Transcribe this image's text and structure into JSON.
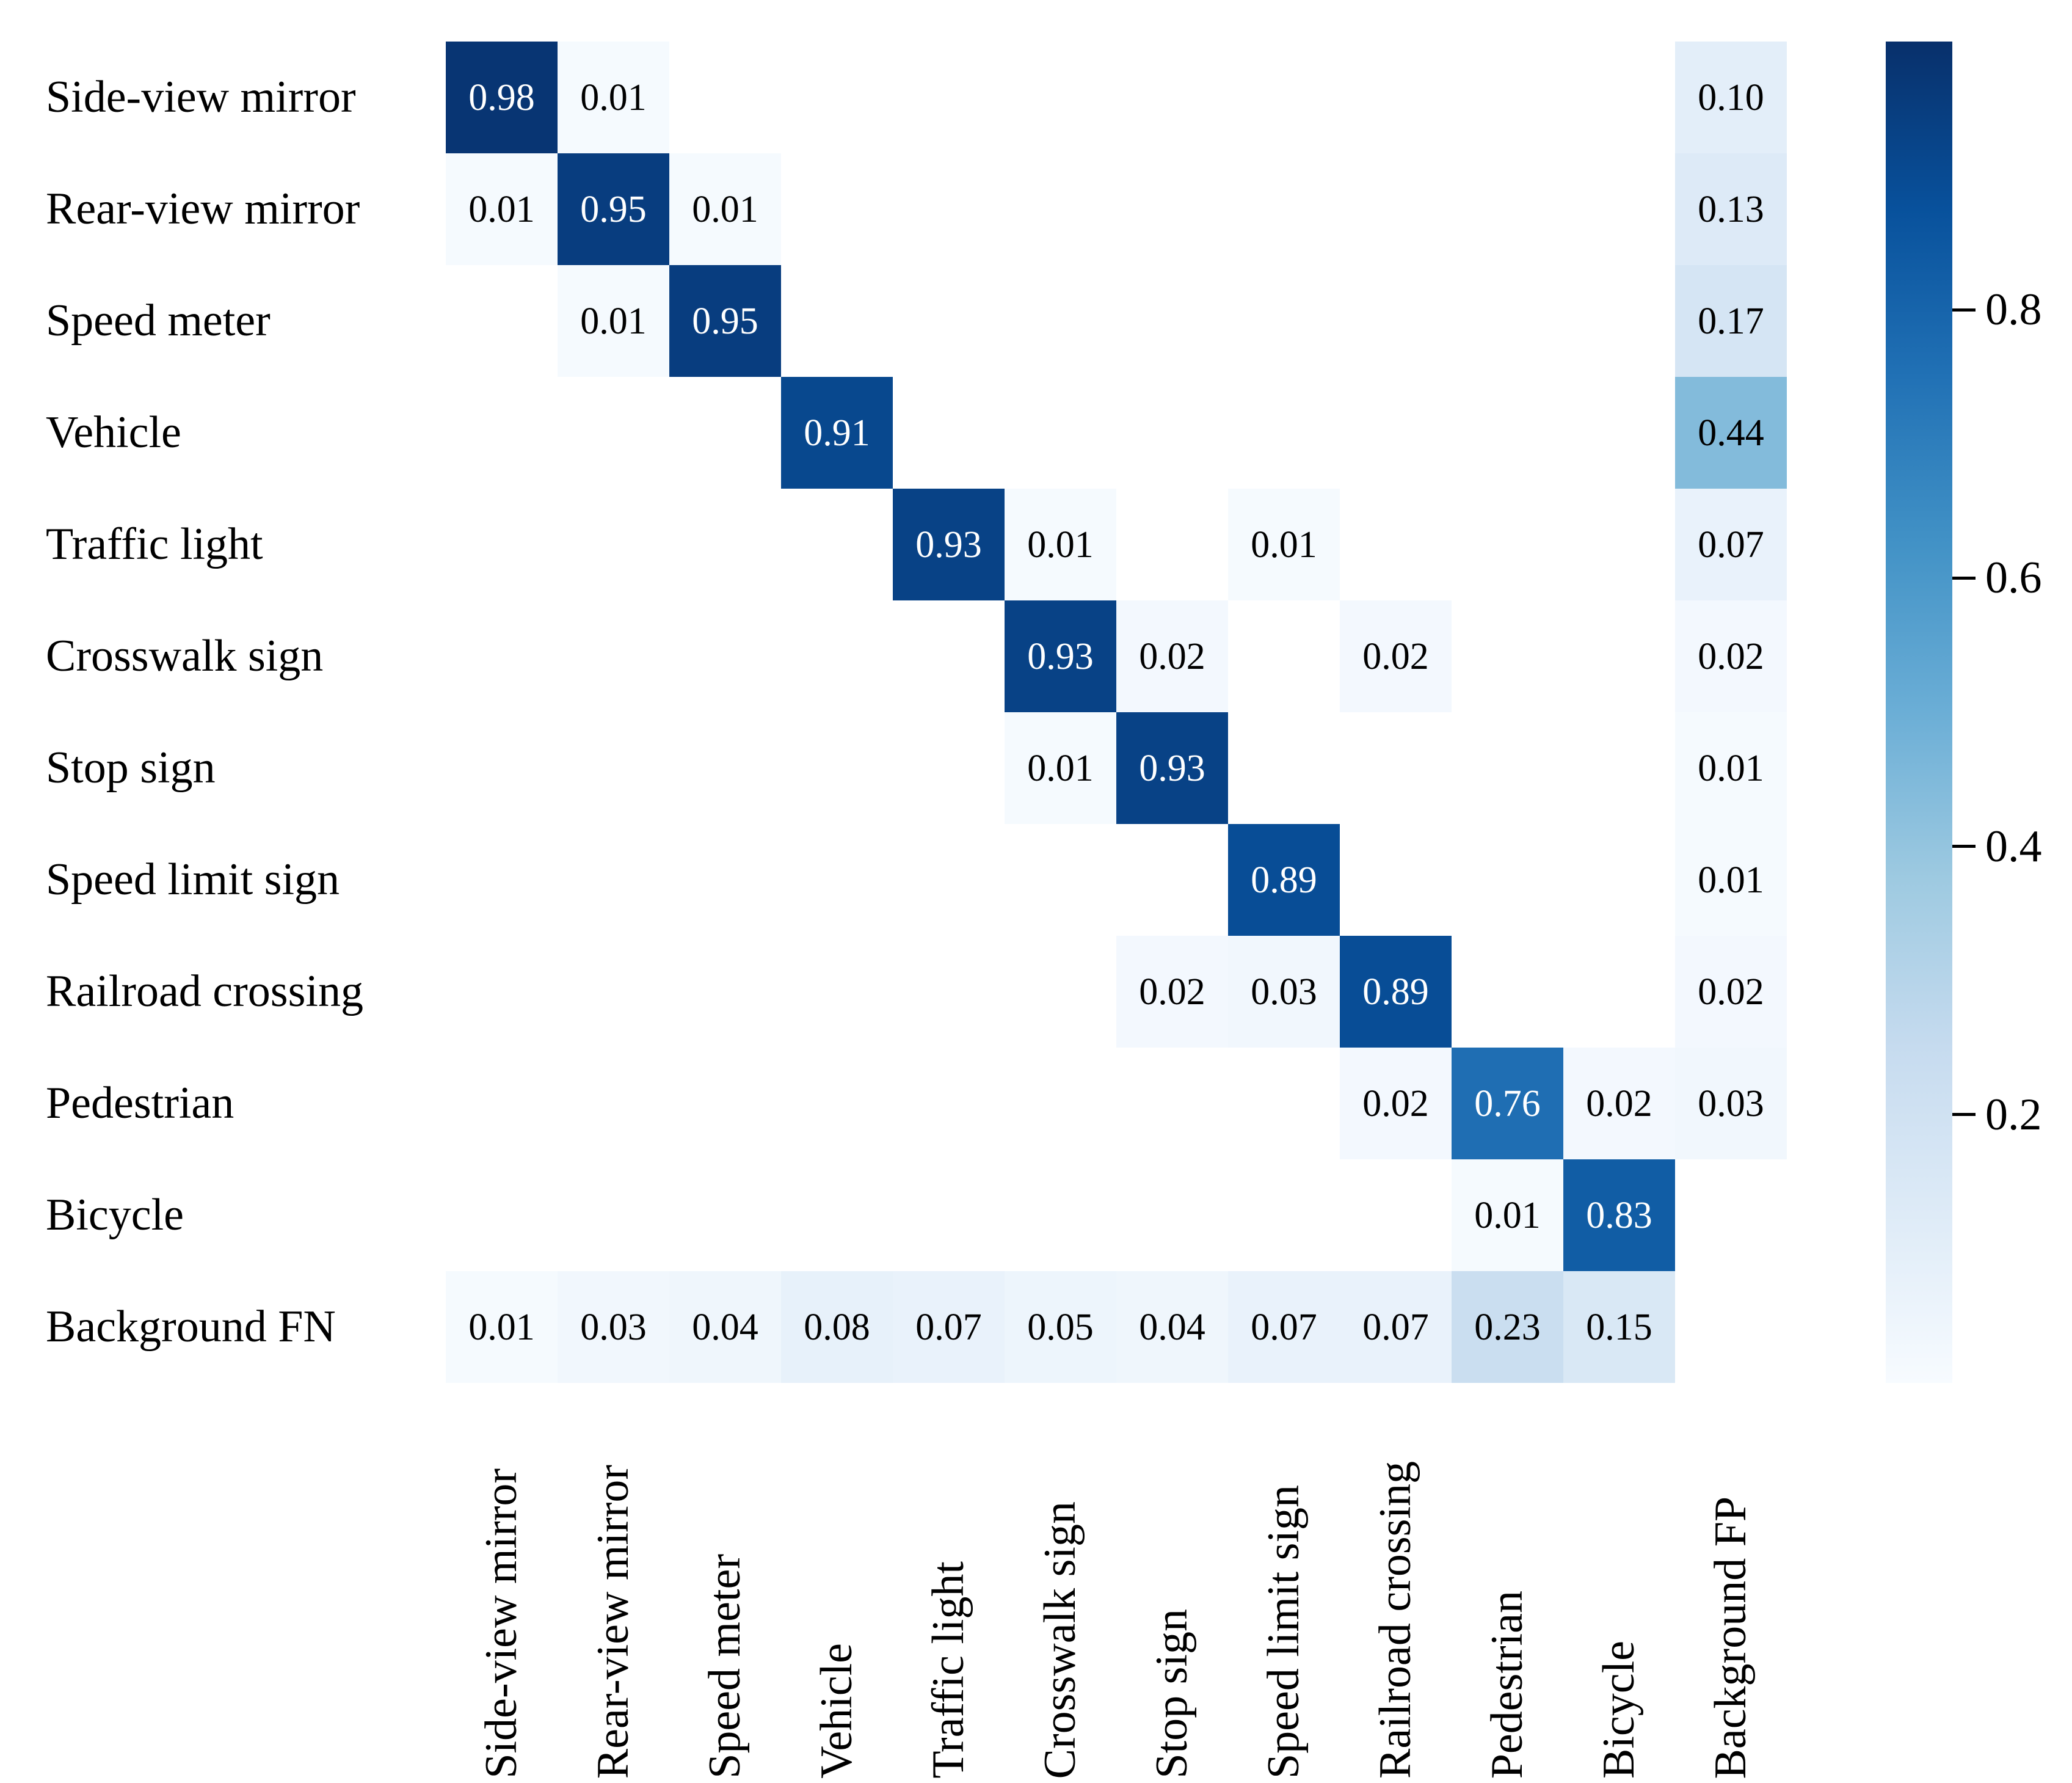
{
  "chart_data": {
    "type": "heatmap",
    "title": "",
    "xlabel": "",
    "ylabel": "",
    "row_labels": [
      "Side-view mirror",
      "Rear-view mirror",
      "Speed meter",
      "Vehicle",
      "Traffic light",
      "Crosswalk sign",
      "Stop sign",
      "Speed limit sign",
      "Railroad crossing",
      "Pedestrian",
      "Bicycle",
      "Background FN"
    ],
    "col_labels": [
      "Side-view mirror",
      "Rear-view mirror",
      "Speed meter",
      "Vehicle",
      "Traffic light",
      "Crosswalk sign",
      "Stop sign",
      "Speed limit sign",
      "Railroad crossing",
      "Pedestrian",
      "Bicycle",
      "Background FP"
    ],
    "matrix": [
      [
        0.98,
        0.01,
        null,
        null,
        null,
        null,
        null,
        null,
        null,
        null,
        null,
        0.1
      ],
      [
        0.01,
        0.95,
        0.01,
        null,
        null,
        null,
        null,
        null,
        null,
        null,
        null,
        0.13
      ],
      [
        null,
        0.01,
        0.95,
        null,
        null,
        null,
        null,
        null,
        null,
        null,
        null,
        0.17
      ],
      [
        null,
        null,
        null,
        0.91,
        null,
        null,
        null,
        null,
        null,
        null,
        null,
        0.44
      ],
      [
        null,
        null,
        null,
        null,
        0.93,
        0.01,
        null,
        0.01,
        null,
        null,
        null,
        0.07
      ],
      [
        null,
        null,
        null,
        null,
        null,
        0.93,
        0.02,
        null,
        0.02,
        null,
        null,
        0.02
      ],
      [
        null,
        null,
        null,
        null,
        null,
        0.01,
        0.93,
        null,
        null,
        null,
        null,
        0.01
      ],
      [
        null,
        null,
        null,
        null,
        null,
        null,
        null,
        0.89,
        null,
        null,
        null,
        0.01
      ],
      [
        null,
        null,
        null,
        null,
        null,
        null,
        0.02,
        0.03,
        0.89,
        null,
        null,
        0.02
      ],
      [
        null,
        null,
        null,
        null,
        null,
        null,
        null,
        null,
        0.02,
        0.76,
        0.02,
        0.03
      ],
      [
        null,
        null,
        null,
        null,
        null,
        null,
        null,
        null,
        null,
        0.01,
        0.83,
        null
      ],
      [
        0.01,
        0.03,
        0.04,
        0.08,
        0.07,
        0.05,
        0.04,
        0.07,
        0.07,
        0.23,
        0.15,
        null
      ]
    ],
    "value_decimals": 2,
    "grid": "off",
    "legend_position": "none",
    "colorbar": {
      "position": "right",
      "colormap": "Blues",
      "vmin": 0,
      "vmax": 1,
      "ticks": [
        0.8,
        0.6,
        0.4,
        0.2
      ],
      "tick_decimals": 1
    },
    "colors": {
      "empty_cell": "#ffffff",
      "text_on_dark": "#ffffff",
      "text_on_light": "#000000",
      "darkest": "#08306b",
      "lightest": "#f7fbff"
    }
  }
}
